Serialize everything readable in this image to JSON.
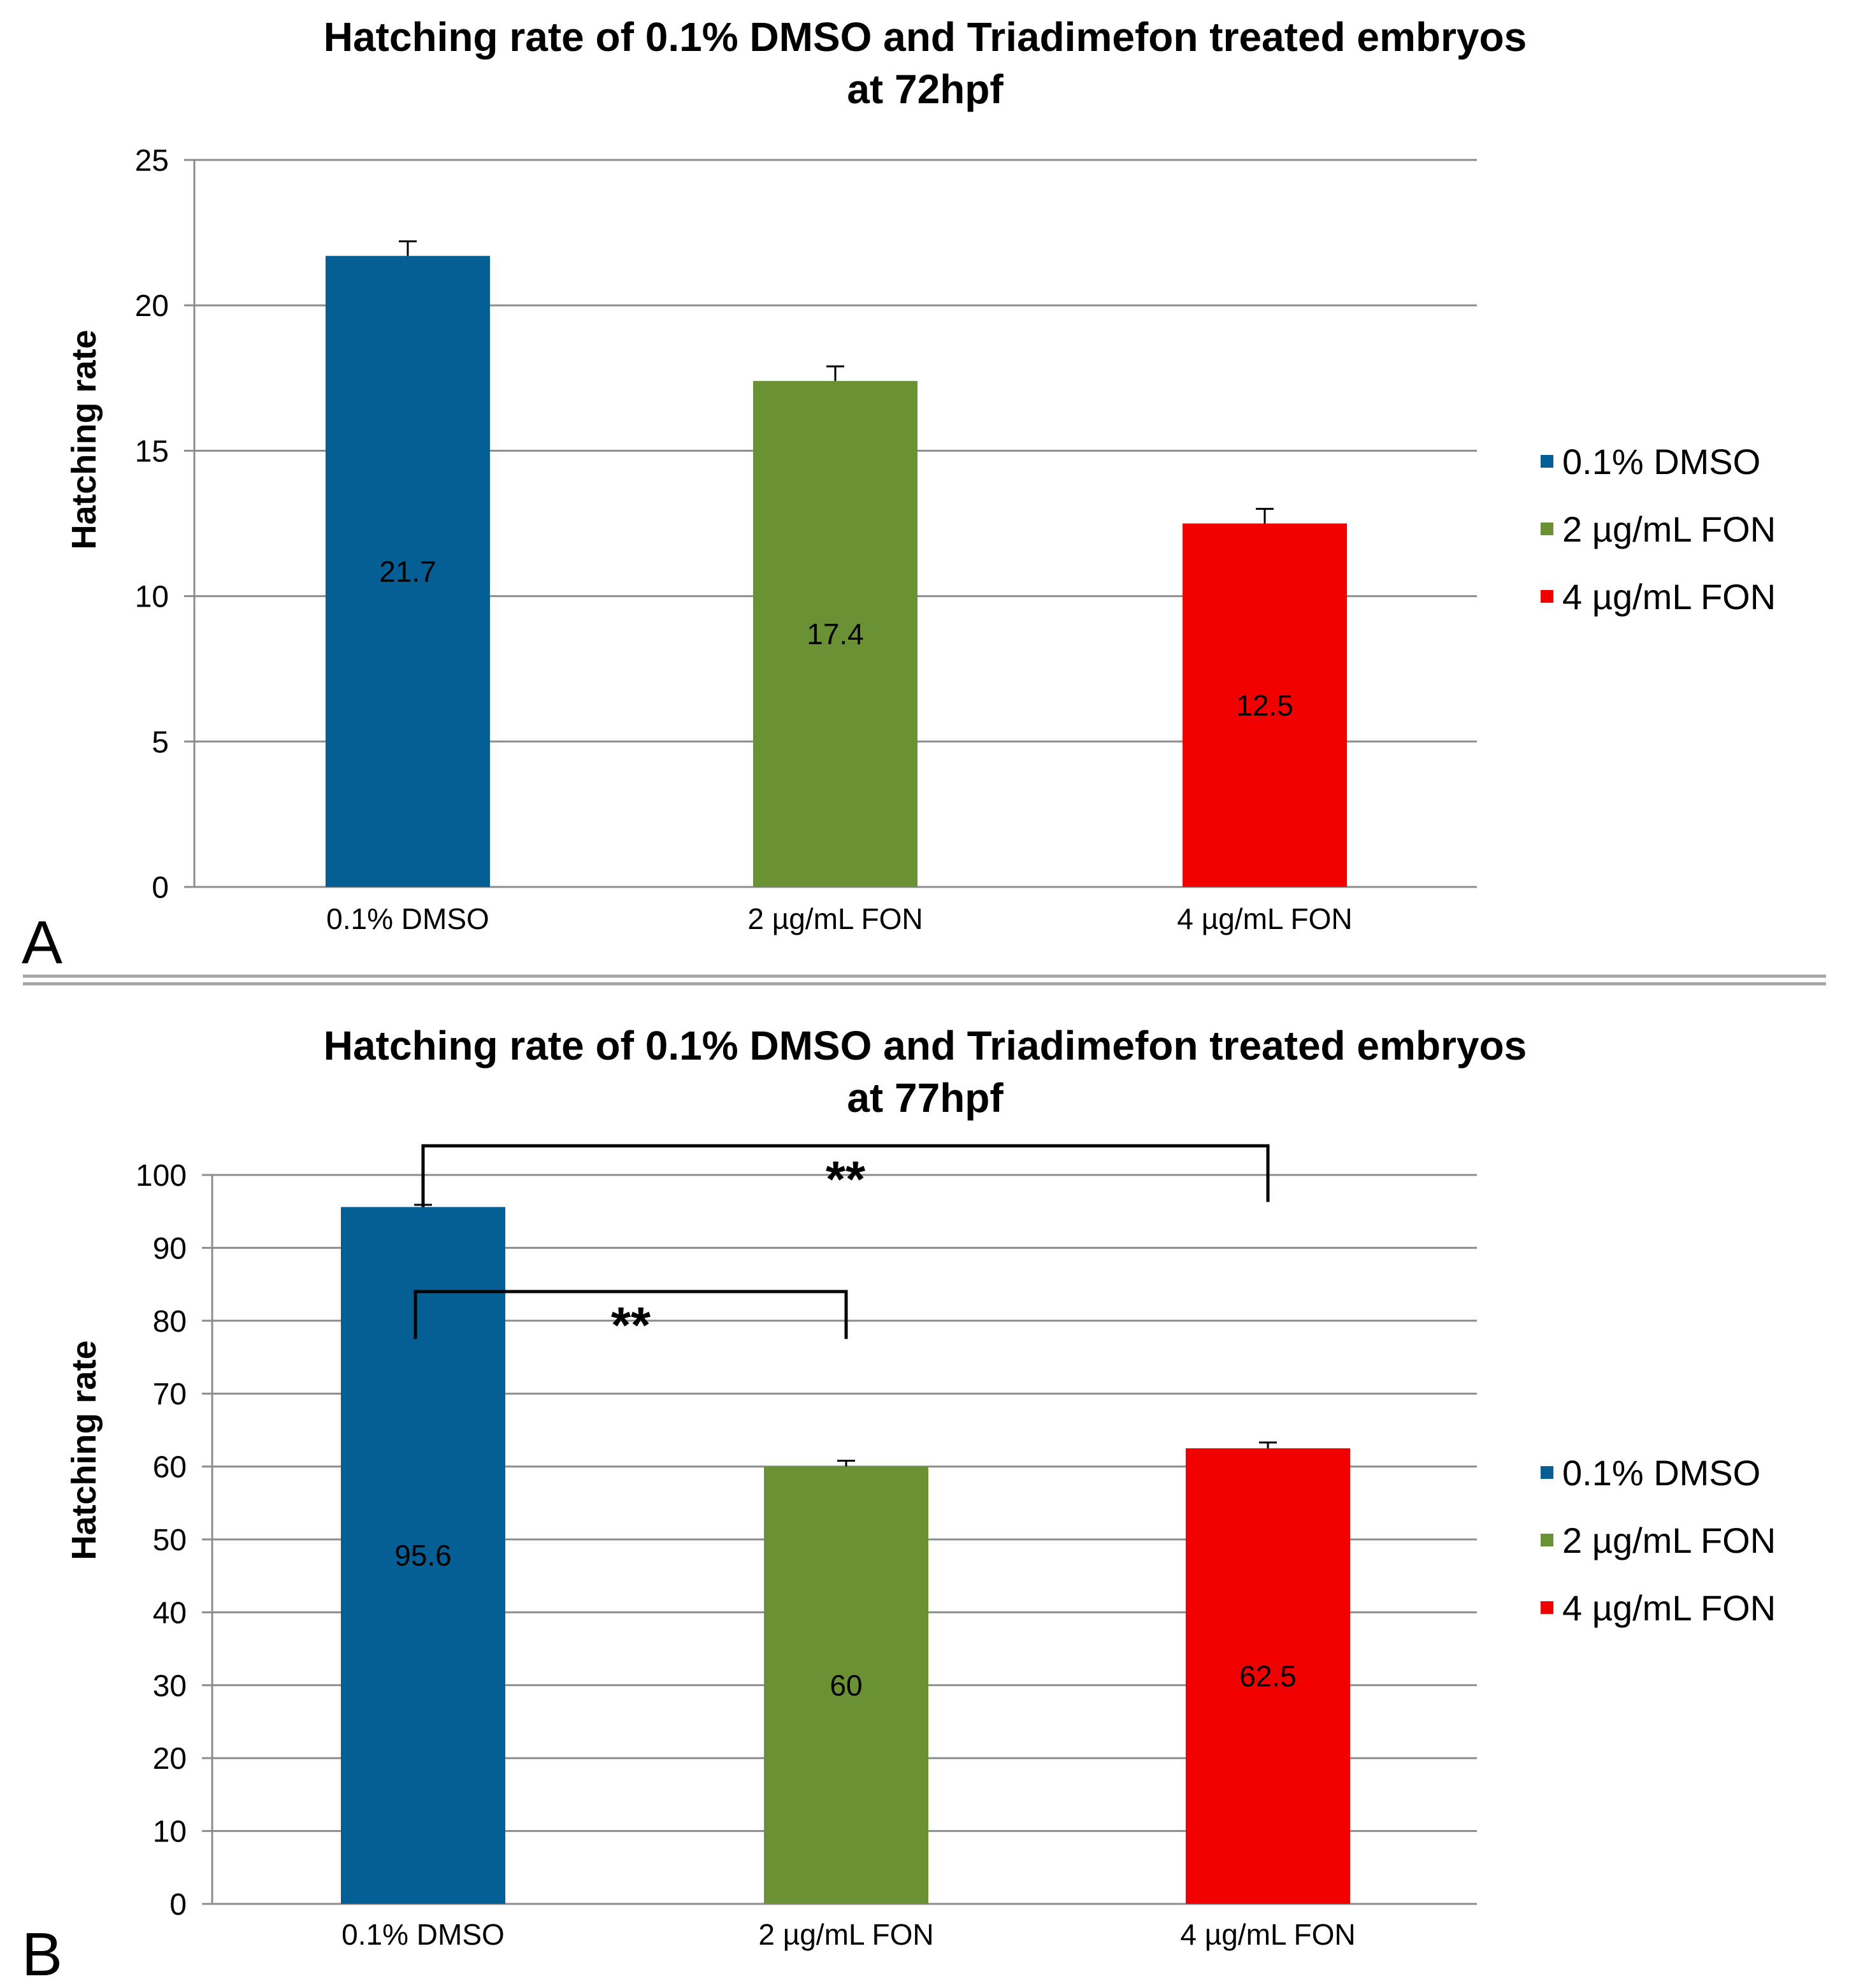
{
  "chart_data": [
    {
      "type": "bar",
      "panel_label": "A",
      "title_lines": [
        "Hatching rate of 0.1%  DMSO and Triadimefon treated embryos",
        "at 72hpf"
      ],
      "xlabel": "",
      "ylabel": "Hatching rate",
      "ylim": [
        0,
        25
      ],
      "ytick_step": 5,
      "ytick_labels": [
        "0",
        "5",
        "10",
        "15",
        "20",
        "25"
      ],
      "grid": true,
      "legend_position": "right",
      "categories": [
        "0.1% DMSO",
        "2 µg/mL FON",
        "4 µg/mL FON"
      ],
      "series": [
        {
          "name": "0.1% DMSO",
          "color": "#055e94",
          "values": [
            21.7,
            null,
            null
          ],
          "error": [
            0.5,
            null,
            null
          ],
          "data_labels": [
            "21.7",
            "",
            ""
          ]
        },
        {
          "name": "2 µg/mL FON",
          "color": "#6a9234",
          "values": [
            null,
            17.4,
            null
          ],
          "error": [
            null,
            0.5,
            null
          ],
          "data_labels": [
            "",
            "17.4",
            ""
          ]
        },
        {
          "name": "4 µg/mL FON",
          "color": "#f20000",
          "values": [
            null,
            null,
            12.5
          ],
          "error": [
            null,
            null,
            0.5
          ],
          "data_labels": [
            "",
            "",
            "12.5"
          ]
        }
      ],
      "significance": []
    },
    {
      "type": "bar",
      "panel_label": "B",
      "title_lines": [
        "Hatching rate of 0.1%  DMSO and Triadimefon treated embryos",
        "at 77hpf"
      ],
      "xlabel": "",
      "ylabel": "Hatching rate",
      "ylim": [
        0,
        100
      ],
      "ytick_step": 10,
      "ytick_labels": [
        "0",
        "10",
        "20",
        "30",
        "40",
        "50",
        "60",
        "70",
        "80",
        "90",
        "100"
      ],
      "grid": true,
      "legend_position": "right",
      "categories": [
        "0.1% DMSO",
        "2 µg/mL FON",
        "4 µg/mL FON"
      ],
      "series": [
        {
          "name": "0.1% DMSO",
          "color": "#055e94",
          "values": [
            95.6,
            null,
            null
          ],
          "error": [
            0.3,
            null,
            null
          ],
          "data_labels": [
            "95.6",
            "",
            ""
          ]
        },
        {
          "name": "2 µg/mL FON",
          "color": "#6a9234",
          "values": [
            null,
            60,
            null
          ],
          "error": [
            null,
            0.8,
            null
          ],
          "data_labels": [
            "",
            "60",
            ""
          ]
        },
        {
          "name": "4 µg/mL FON",
          "color": "#f20000",
          "values": [
            null,
            null,
            62.5
          ],
          "error": [
            null,
            null,
            0.8
          ],
          "data_labels": [
            "",
            "",
            "62.5"
          ]
        }
      ],
      "significance": [
        {
          "from": 0,
          "to": 2,
          "label": "**",
          "bracket_value": 104,
          "from_end": 95.6,
          "to_end": 96.3
        },
        {
          "from": 0,
          "to": 1,
          "label": "**",
          "bracket_value": 84,
          "from_end": 77.5,
          "to_end": 77.5
        }
      ]
    }
  ]
}
